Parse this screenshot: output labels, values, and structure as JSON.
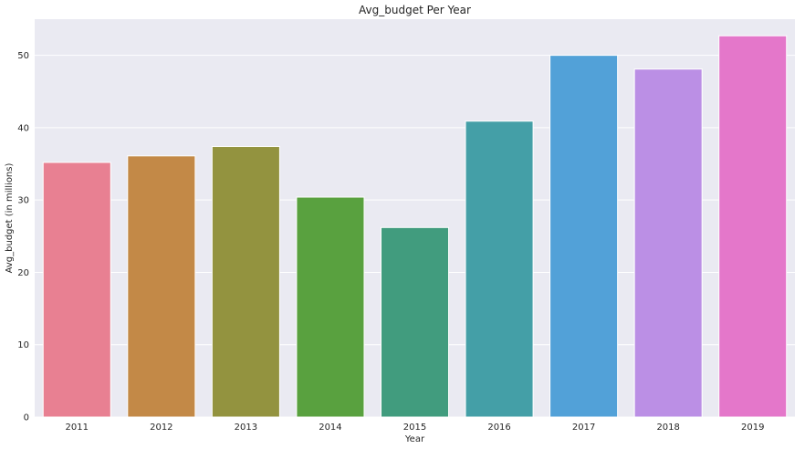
{
  "chart_data": {
    "type": "bar",
    "title": "Avg_budget Per Year",
    "xlabel": "Year",
    "ylabel": "Avg_budget (in millions)",
    "categories": [
      "2011",
      "2012",
      "2013",
      "2014",
      "2015",
      "2016",
      "2017",
      "2018",
      "2019"
    ],
    "values": [
      35.2,
      36.1,
      37.4,
      30.4,
      26.2,
      40.9,
      50.0,
      48.1,
      52.7
    ],
    "colors": [
      "#e88092",
      "#c38947",
      "#93933f",
      "#59a13f",
      "#419c7e",
      "#449fa7",
      "#52a1d8",
      "#bb8fe5",
      "#e477ca"
    ],
    "ylim": [
      0,
      55
    ],
    "yticks": [
      0,
      10,
      20,
      30,
      40,
      50
    ],
    "grid": true,
    "background": "#eaeaf2"
  }
}
